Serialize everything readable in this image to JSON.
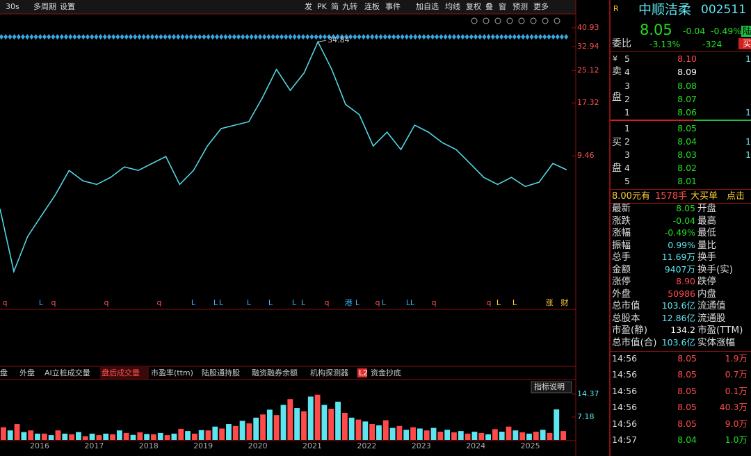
{
  "toolbar": {
    "left": [
      "30s",
      "多周期",
      "设置"
    ],
    "right": [
      "发",
      "PK",
      "简",
      "九转",
      "连板",
      "事件",
      "加自选",
      "均线",
      "复权",
      "叠",
      "窗",
      "预测",
      "更多"
    ]
  },
  "chart_data": [
    {
      "type": "line",
      "color": "#52d6e6",
      "log": true,
      "ylim": [
        1.7,
        45
      ],
      "yticks": [
        9.46,
        17.32,
        25.12,
        32.94,
        40.93
      ],
      "peak_label": 34.84,
      "values": [
        5.16,
        2.52,
        3.76,
        4.77,
        6.05,
        8.0,
        7.1,
        6.82,
        7.39,
        8.33,
        8.0,
        8.67,
        9.38,
        6.82,
        8.0,
        10.58,
        12.91,
        13.44,
        13.97,
        18.47,
        25.42,
        20.0,
        24.41,
        34.84,
        25.42,
        17.03,
        15.14,
        10.58,
        12.4,
        10.16,
        13.44,
        12.4,
        11.0,
        10.16,
        8.67,
        7.39,
        6.82,
        7.39,
        6.66,
        6.99,
        8.67,
        8.05
      ],
      "event_markers": [
        "q",
        "L",
        "q",
        "q",
        "q",
        "L",
        "L",
        "L",
        "L",
        "L",
        "L",
        "L",
        "q",
        "港",
        "L",
        "q",
        "L",
        "L",
        "L",
        "q",
        "q",
        "L",
        "L",
        "涨",
        "财"
      ]
    },
    {
      "type": "bar",
      "colors": [
        "#ff4a4a",
        "#5ee6f0"
      ],
      "ylim": [
        0,
        18.5
      ],
      "yticks": [
        7.18,
        14.37
      ],
      "x_labels": [
        "2016",
        "2017",
        "2018",
        "2019",
        "2020",
        "2021",
        "2022",
        "2023",
        "2024",
        "2025"
      ],
      "values": [
        4,
        3,
        5,
        2.5,
        3,
        2,
        2,
        1.5,
        3,
        2,
        1.8,
        2.5,
        1.2,
        2,
        1.5,
        2,
        1.8,
        3,
        2.2,
        1.6,
        2.4,
        1.9,
        1.8,
        2.2,
        1.5,
        2,
        3.5,
        2.8,
        2,
        3.1,
        3,
        4.2,
        3.6,
        5,
        4.4,
        6,
        5.2,
        7,
        8,
        9.5,
        7.8,
        11,
        12.8,
        10,
        9,
        13.6,
        14.2,
        11,
        9.8,
        12,
        8.5,
        7,
        6.4,
        5.8,
        5,
        4.6,
        6.2,
        3.8,
        4.4,
        3.2,
        4,
        3.6,
        3,
        3.8,
        2.6,
        3.2,
        2.4,
        2.8,
        2,
        2.6,
        2.2,
        1.8,
        3.4,
        2.6,
        4.2,
        3,
        2.4,
        2,
        2.6,
        3.2,
        2.2,
        9.6,
        2.8
      ]
    }
  ],
  "tabs": {
    "items": [
      "盘",
      "外盘",
      "AI立桩成交量",
      "盘后成交量",
      "市盈率(ttm)",
      "陆股通持股",
      "融资融券余额",
      "机构探测器",
      "L2",
      "资金抄底"
    ],
    "active": 3,
    "button": "指标说明"
  },
  "quote": {
    "logo": "R",
    "name": "中顺洁柔",
    "code": "002511",
    "price": "8.05",
    "change": "-0.04",
    "change_pct": "-0.49%",
    "badge": "陆",
    "weibi_label": "委比",
    "weibi": "-3.13%",
    "weicha": "-324",
    "trade_btn": "买",
    "currency": "¥",
    "sell_side": [
      "卖",
      "盘"
    ],
    "buy_side": [
      "买",
      "盘"
    ],
    "sell": [
      {
        "level": "5",
        "price": "8.10",
        "vol": "1",
        "color": "#ff4a4a"
      },
      {
        "level": "4",
        "price": "8.09",
        "vol": "",
        "color": "#ffffff"
      },
      {
        "level": "3",
        "price": "8.08",
        "vol": "",
        "color": "#22dd22"
      },
      {
        "level": "2",
        "price": "8.07",
        "vol": "",
        "color": "#22dd22"
      },
      {
        "level": "1",
        "price": "8.06",
        "vol": "1",
        "color": "#22dd22"
      }
    ],
    "buy": [
      {
        "level": "1",
        "price": "8.05",
        "vol": "",
        "color": "#22dd22"
      },
      {
        "level": "2",
        "price": "8.04",
        "vol": "1",
        "color": "#22dd22"
      },
      {
        "level": "3",
        "price": "8.03",
        "vol": "1",
        "color": "#22dd22"
      },
      {
        "level": "4",
        "price": "8.02",
        "vol": "",
        "color": "#22dd22"
      },
      {
        "level": "5",
        "price": "8.01",
        "vol": "",
        "color": "#22dd22"
      }
    ],
    "big_order": [
      "8.00元有",
      "1578手",
      "大买单",
      "点击"
    ],
    "stats": [
      {
        "label": "最新",
        "value": "8.05",
        "label2": "开盘",
        "color": "#22dd22"
      },
      {
        "label": "涨跌",
        "value": "-0.04",
        "label2": "最高",
        "color": "#22dd22"
      },
      {
        "label": "涨幅",
        "value": "-0.49%",
        "label2": "最低",
        "color": "#22dd22"
      },
      {
        "label": "振幅",
        "value": "0.99%",
        "label2": "量比",
        "color": "#5ee6f0"
      },
      {
        "label": "总手",
        "value": "11.69万",
        "label2": "换手",
        "color": "#5ee6f0"
      },
      {
        "label": "金额",
        "value": "9407万",
        "label2": "换手(实)",
        "color": "#5ee6f0"
      },
      {
        "label": "涨停",
        "value": "8.90",
        "label2": "跌停",
        "color": "#ff4a4a"
      },
      {
        "label": "外盘",
        "value": "50986",
        "label2": "内盘",
        "color": "#ff4a4a"
      },
      {
        "label": "总市值",
        "value": "103.6亿",
        "label2": "流通值",
        "color": "#5ee6f0"
      },
      {
        "label": "总股本",
        "value": "12.86亿",
        "label2": "流通股",
        "color": "#5ee6f0"
      },
      {
        "label": "市盈(静)",
        "value": "134.2",
        "label2": "市盈(TTM)",
        "color": "#ffffff"
      },
      {
        "label": "总市值(合)",
        "value": "103.6亿",
        "label2": "实体涨幅",
        "color": "#5ee6f0"
      }
    ],
    "trades": [
      {
        "time": "14:56",
        "price": "8.05",
        "vol": "1.9万",
        "color": "#ff4a4a"
      },
      {
        "time": "14:56",
        "price": "8.05",
        "vol": "0.7万",
        "color": "#ff4a4a"
      },
      {
        "time": "14:56",
        "price": "8.05",
        "vol": "0.1万",
        "color": "#ff4a4a"
      },
      {
        "time": "14:56",
        "price": "8.05",
        "vol": "40.3万",
        "color": "#ff4a4a"
      },
      {
        "time": "14:56",
        "price": "8.05",
        "vol": "9.0万",
        "color": "#ff4a4a"
      },
      {
        "time": "14:57",
        "price": "8.04",
        "vol": "1.0万",
        "color": "#22dd22"
      }
    ]
  }
}
